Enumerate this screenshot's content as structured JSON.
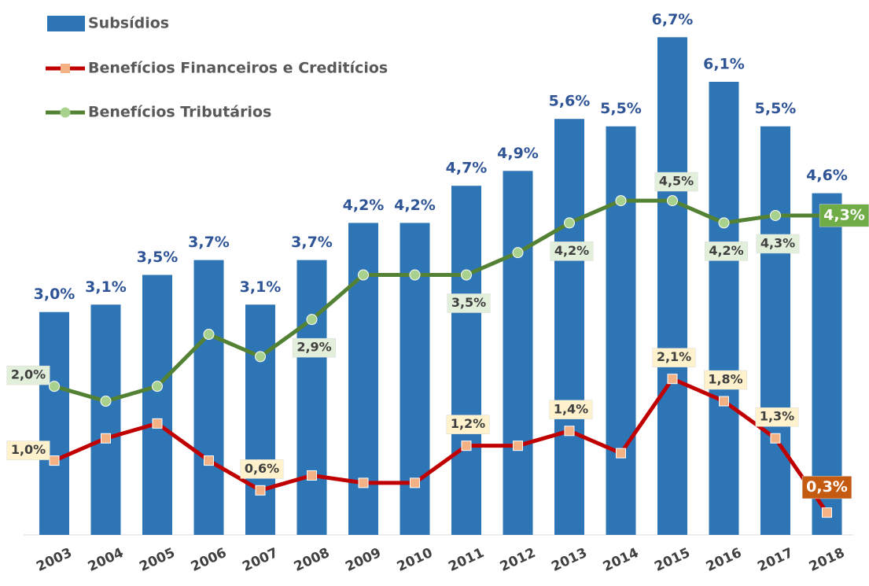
{
  "chart_data": {
    "type": "bar_line",
    "categories": [
      "2003",
      "2004",
      "2005",
      "2006",
      "2007",
      "2008",
      "2009",
      "2010",
      "2011",
      "2012",
      "2013",
      "2014",
      "2015",
      "2016",
      "2017",
      "2018"
    ],
    "ylim": [
      0,
      7
    ],
    "series": [
      {
        "name": "Subsídios",
        "type": "bar",
        "color": "#2e75b6",
        "values": [
          3.0,
          3.1,
          3.5,
          3.7,
          3.1,
          3.7,
          4.2,
          4.2,
          4.7,
          4.9,
          5.6,
          5.5,
          6.7,
          6.1,
          5.5,
          4.6
        ],
        "value_labels": [
          "3,0%",
          "3,1%",
          "3,5%",
          "3,7%",
          "3,1%",
          "3,7%",
          "4,2%",
          "4,2%",
          "4,7%",
          "4,9%",
          "5,6%",
          "5,5%",
          "6,7%",
          "6,1%",
          "5,5%",
          "4,6%"
        ]
      },
      {
        "name": "Benefícios Financeiros e Creditícios",
        "type": "line",
        "color": "#c00000",
        "marker_color": "#f4b183",
        "marker": "square",
        "values": [
          1.0,
          1.3,
          1.5,
          1.0,
          0.6,
          0.8,
          0.7,
          0.7,
          1.2,
          1.2,
          1.4,
          1.1,
          2.1,
          1.8,
          1.3,
          0.3
        ],
        "value_labels": [
          "1,0%",
          null,
          null,
          null,
          "0,6%",
          null,
          null,
          null,
          "1,2%",
          null,
          "1,4%",
          null,
          "2,1%",
          "1,8%",
          "1,3%",
          "0,3%"
        ]
      },
      {
        "name": "Benefícios Tributários",
        "type": "line",
        "color": "#548235",
        "marker_color": "#a9d18e",
        "marker": "circle",
        "values": [
          2.0,
          1.8,
          2.0,
          2.7,
          2.4,
          2.9,
          3.5,
          3.5,
          3.5,
          3.8,
          4.2,
          4.5,
          4.5,
          4.2,
          4.3,
          4.3
        ],
        "value_labels": [
          "2,0%",
          null,
          null,
          null,
          null,
          "2,9%",
          null,
          null,
          "3,5%",
          null,
          "4,2%",
          null,
          "4,5%",
          "4,2%",
          "4,3%",
          "4,3%"
        ]
      }
    ]
  }
}
